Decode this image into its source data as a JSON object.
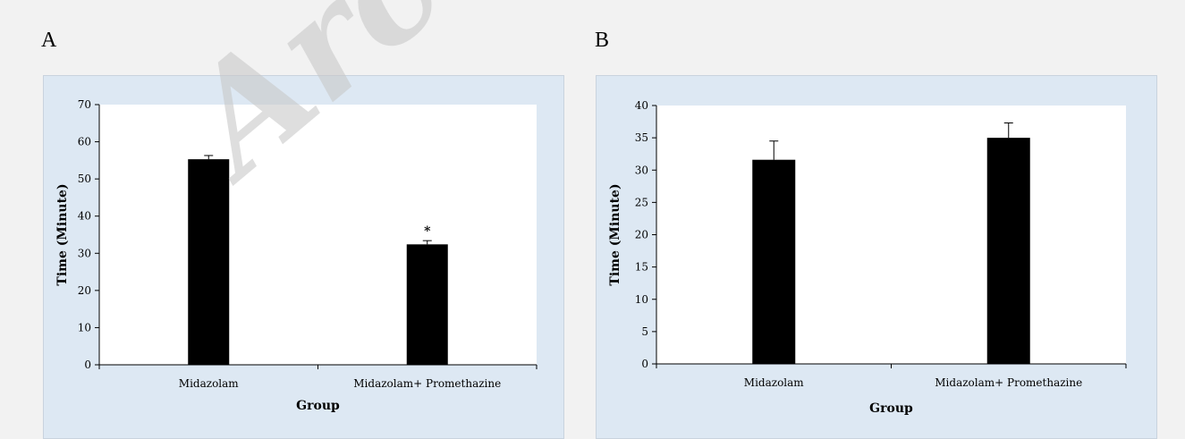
{
  "panels": {
    "a": {
      "label": "A"
    },
    "b": {
      "label": "B"
    }
  },
  "watermark": {
    "text": "Archive"
  },
  "chart_data": [
    {
      "type": "bar",
      "categories": [
        "Midazolam",
        "Midazolam+ Promethazine"
      ],
      "values": [
        55.3,
        32.4
      ],
      "errors": [
        1.0,
        1.0
      ],
      "annotations": [
        "",
        "*"
      ],
      "title": "",
      "xlabel": "Group",
      "ylabel": "Time (Minute)",
      "ylim": [
        0,
        70
      ],
      "yticks": [
        0,
        10,
        20,
        30,
        40,
        50,
        60,
        70
      ],
      "bar_color": "#000000",
      "plot_bg": "#ffffff",
      "chart_bg": "#dde8f3",
      "grid": false
    },
    {
      "type": "bar",
      "categories": [
        "Midazolam",
        "Midazolam+ Promethazine"
      ],
      "values": [
        31.6,
        35.0
      ],
      "errors": [
        2.9,
        2.3
      ],
      "annotations": [
        "",
        ""
      ],
      "title": "",
      "xlabel": "Group",
      "ylabel": "Time (Minute)",
      "ylim": [
        0,
        40
      ],
      "yticks": [
        0,
        5,
        10,
        15,
        20,
        25,
        30,
        35,
        40
      ],
      "bar_color": "#000000",
      "plot_bg": "#ffffff",
      "chart_bg": "#dde8f3",
      "grid": false
    }
  ]
}
